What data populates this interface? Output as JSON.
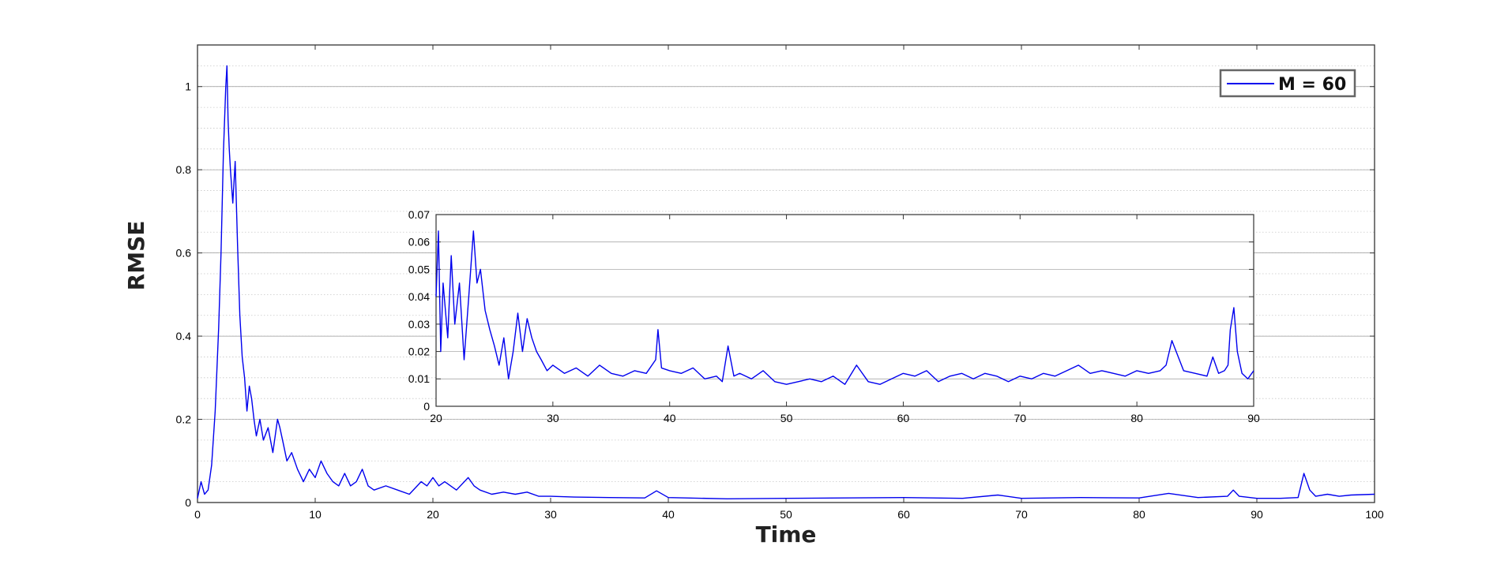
{
  "chart_data": {
    "type": "line",
    "title": "",
    "xlabel": "Time",
    "ylabel": "RMSE",
    "legend": {
      "position": "top-right",
      "entries": [
        "M = 60"
      ]
    },
    "grid": true,
    "line_color": "#0000ee",
    "main": {
      "xlim": [
        0,
        100
      ],
      "ylim": [
        0,
        1.1
      ],
      "xticks": [
        0,
        10,
        20,
        30,
        40,
        50,
        60,
        70,
        80,
        90,
        100
      ],
      "yticks": [
        0,
        0.2,
        0.4,
        0.6,
        0.8,
        1
      ],
      "series": [
        {
          "name": "M = 60",
          "x": [
            0,
            0.3,
            0.6,
            0.9,
            1.2,
            1.5,
            1.8,
            2.0,
            2.2,
            2.4,
            2.5,
            2.6,
            2.7,
            2.8,
            3.0,
            3.2,
            3.4,
            3.6,
            3.8,
            4.0,
            4.2,
            4.4,
            4.6,
            4.8,
            5.0,
            5.3,
            5.6,
            6.0,
            6.4,
            6.8,
            7.0,
            7.3,
            7.6,
            8.0,
            8.5,
            9.0,
            9.5,
            10.0,
            10.5,
            11.0,
            11.5,
            12.0,
            12.5,
            13.0,
            13.5,
            14.0,
            14.5,
            15.0,
            16.0,
            17.0,
            18.0,
            19.0,
            19.5,
            20.0,
            20.5,
            21.0,
            22.0,
            23.0,
            23.5,
            24.0,
            25.0,
            26.0,
            27.0,
            28.0,
            29.0,
            30.0,
            32.0,
            35.0,
            38.0,
            39.0,
            40.0,
            45.0,
            50.0,
            55.0,
            60.0,
            65.0,
            68.0,
            70.0,
            75.0,
            80.0,
            82.5,
            85.0,
            87.5,
            88.0,
            88.5,
            90.0,
            92.0,
            93.5,
            94.0,
            94.5,
            95.0,
            96.0,
            97.0,
            98.0,
            100.0
          ],
          "y": [
            0.01,
            0.05,
            0.02,
            0.03,
            0.09,
            0.22,
            0.42,
            0.6,
            0.84,
            1.0,
            1.05,
            0.92,
            0.85,
            0.8,
            0.72,
            0.82,
            0.62,
            0.45,
            0.35,
            0.3,
            0.22,
            0.28,
            0.25,
            0.2,
            0.16,
            0.2,
            0.15,
            0.18,
            0.12,
            0.2,
            0.18,
            0.14,
            0.1,
            0.12,
            0.08,
            0.05,
            0.08,
            0.06,
            0.1,
            0.07,
            0.05,
            0.04,
            0.07,
            0.04,
            0.05,
            0.08,
            0.04,
            0.03,
            0.04,
            0.03,
            0.02,
            0.05,
            0.04,
            0.06,
            0.04,
            0.05,
            0.03,
            0.06,
            0.04,
            0.03,
            0.02,
            0.025,
            0.02,
            0.025,
            0.015,
            0.015,
            0.013,
            0.012,
            0.011,
            0.028,
            0.012,
            0.009,
            0.01,
            0.011,
            0.012,
            0.01,
            0.018,
            0.01,
            0.012,
            0.011,
            0.022,
            0.012,
            0.015,
            0.03,
            0.015,
            0.01,
            0.01,
            0.012,
            0.07,
            0.03,
            0.015,
            0.02,
            0.015,
            0.018,
            0.02
          ]
        }
      ]
    },
    "inset": {
      "xlim": [
        20,
        90
      ],
      "ylim": [
        0,
        0.07
      ],
      "xticks": [
        20,
        30,
        40,
        50,
        60,
        70,
        80,
        90
      ],
      "yticks": [
        0,
        0.01,
        0.02,
        0.03,
        0.04,
        0.05,
        0.06,
        0.07
      ],
      "series": [
        {
          "name": "M = 60",
          "x": [
            20.0,
            20.2,
            20.4,
            20.6,
            21.0,
            21.3,
            21.6,
            22.0,
            22.4,
            22.8,
            23.2,
            23.5,
            23.8,
            24.2,
            24.6,
            25.0,
            25.4,
            25.8,
            26.2,
            26.6,
            27.0,
            27.4,
            27.8,
            28.2,
            28.6,
            29.0,
            29.5,
            30.0,
            31.0,
            32.0,
            33.0,
            34.0,
            35.0,
            36.0,
            37.0,
            38.0,
            38.8,
            39.0,
            39.3,
            40.0,
            41.0,
            42.0,
            43.0,
            44.0,
            44.5,
            45.0,
            45.5,
            46.0,
            47.0,
            48.0,
            49.0,
            50.0,
            51.0,
            52.0,
            53.0,
            54.0,
            55.0,
            56.0,
            57.0,
            58.0,
            59.0,
            60.0,
            61.0,
            62.0,
            63.0,
            64.0,
            65.0,
            66.0,
            67.0,
            68.0,
            69.0,
            70.0,
            71.0,
            72.0,
            73.0,
            74.0,
            75.0,
            76.0,
            77.0,
            78.0,
            79.0,
            80.0,
            81.0,
            82.0,
            82.5,
            83.0,
            84.0,
            85.0,
            86.0,
            86.5,
            87.0,
            87.5,
            87.8,
            88.0,
            88.3,
            88.6,
            89.0,
            89.5,
            90.0
          ],
          "y": [
            0.04,
            0.064,
            0.02,
            0.045,
            0.025,
            0.055,
            0.03,
            0.045,
            0.017,
            0.04,
            0.064,
            0.045,
            0.05,
            0.035,
            0.028,
            0.022,
            0.015,
            0.025,
            0.01,
            0.02,
            0.034,
            0.02,
            0.032,
            0.025,
            0.02,
            0.017,
            0.013,
            0.015,
            0.012,
            0.014,
            0.011,
            0.015,
            0.012,
            0.011,
            0.013,
            0.012,
            0.017,
            0.028,
            0.014,
            0.013,
            0.012,
            0.014,
            0.01,
            0.011,
            0.009,
            0.022,
            0.011,
            0.012,
            0.01,
            0.013,
            0.009,
            0.008,
            0.009,
            0.01,
            0.009,
            0.011,
            0.008,
            0.015,
            0.009,
            0.008,
            0.01,
            0.012,
            0.011,
            0.013,
            0.009,
            0.011,
            0.012,
            0.01,
            0.012,
            0.011,
            0.009,
            0.011,
            0.01,
            0.012,
            0.011,
            0.013,
            0.015,
            0.012,
            0.013,
            0.012,
            0.011,
            0.013,
            0.012,
            0.013,
            0.015,
            0.024,
            0.013,
            0.012,
            0.011,
            0.018,
            0.012,
            0.013,
            0.015,
            0.028,
            0.036,
            0.02,
            0.012,
            0.01,
            0.013
          ]
        }
      ]
    }
  }
}
